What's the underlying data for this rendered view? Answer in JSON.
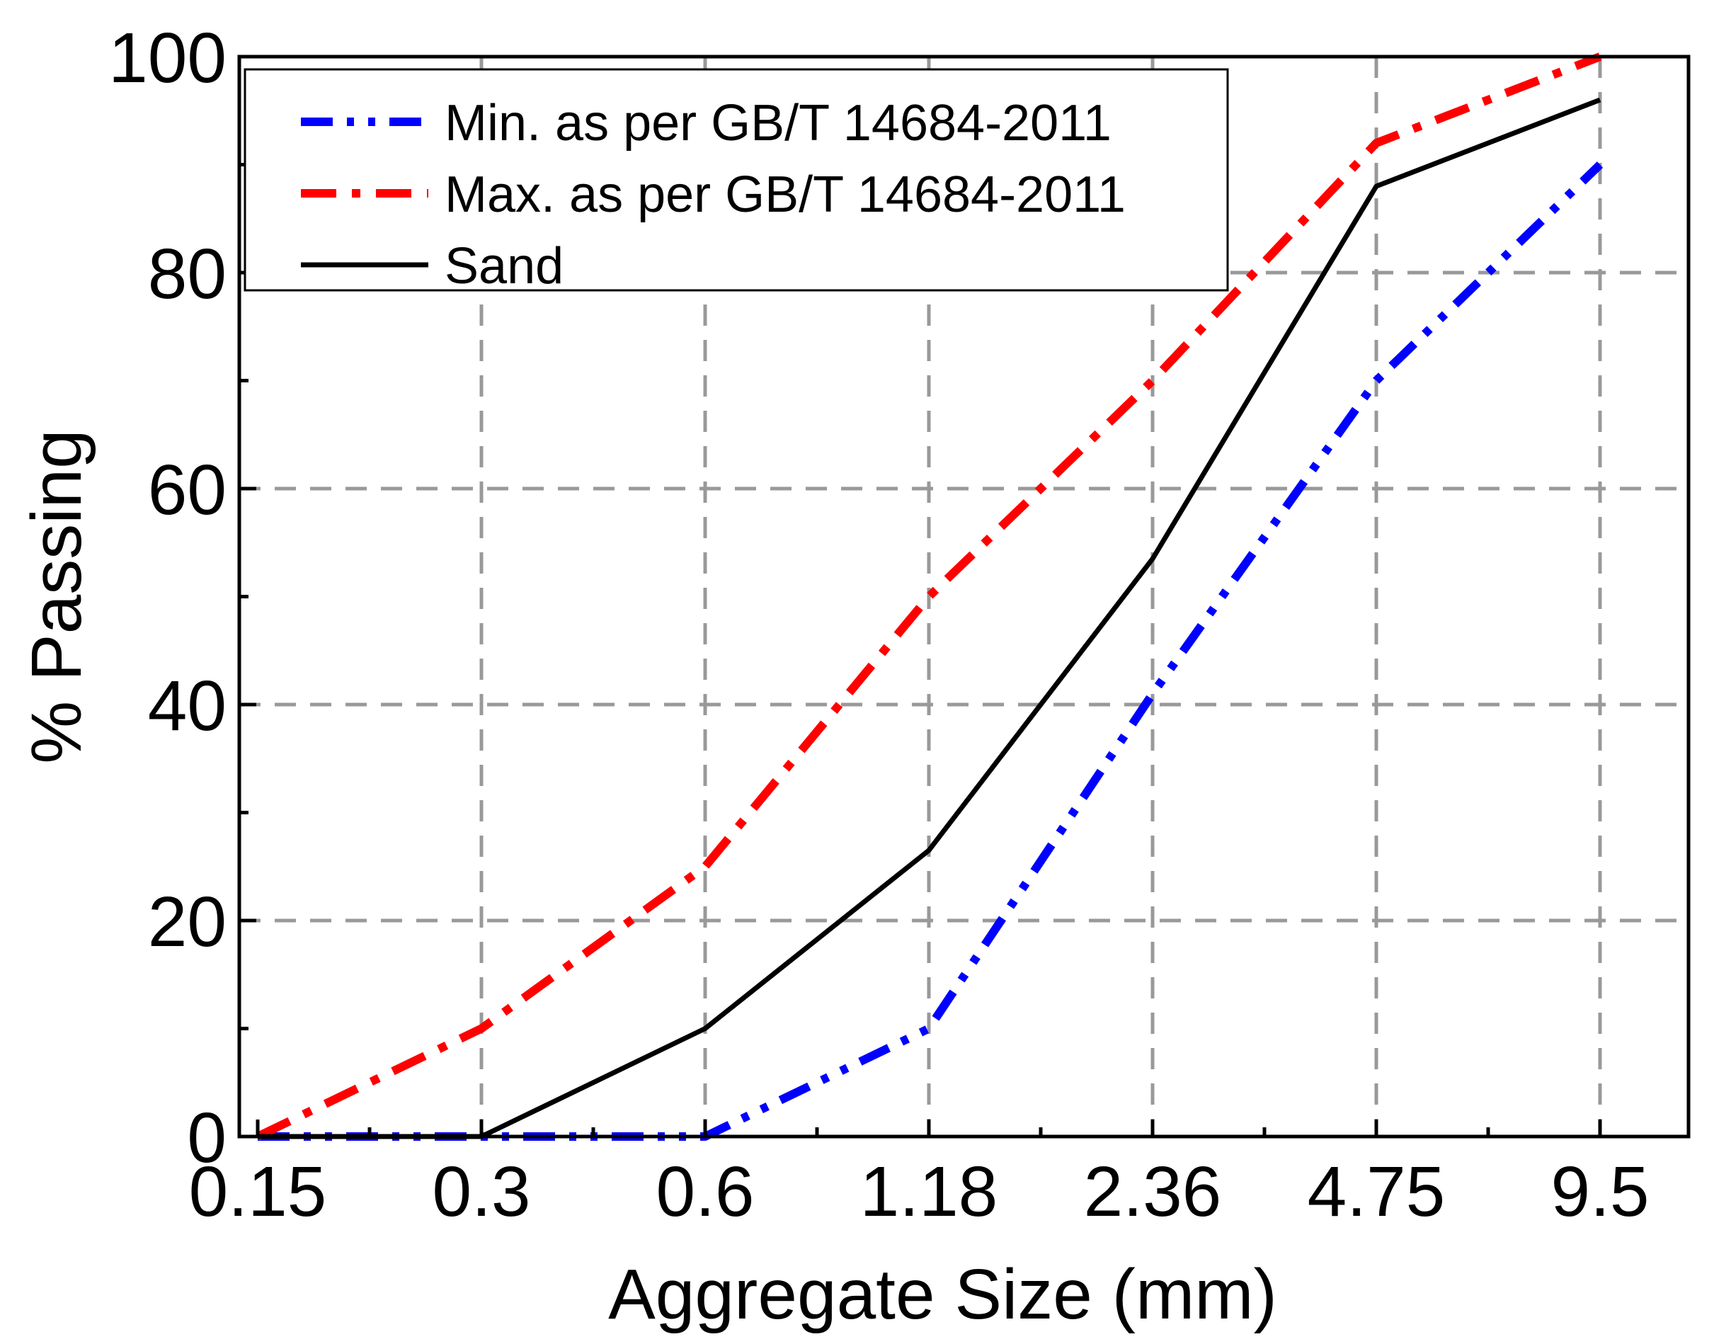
{
  "chart_data": {
    "type": "line",
    "title": "",
    "xlabel": "Aggregate Size (mm)",
    "ylabel": "% Passing",
    "categories": [
      "0.15",
      "0.3",
      "0.6",
      "1.18",
      "2.36",
      "4.75",
      "9.5"
    ],
    "ylim": [
      0,
      100
    ],
    "yticks": [
      "0",
      "20",
      "40",
      "60",
      "80",
      "100"
    ],
    "grid": true,
    "legend_position": "top-left",
    "series": [
      {
        "name": "Min. as per GB/T 14684-2011",
        "color": "#0000ff",
        "style": "dash-dot-dot",
        "values": [
          0,
          0,
          0,
          10,
          41,
          70,
          90
        ]
      },
      {
        "name": "Max. as per GB/T 14684-2011",
        "color": "#ff0000",
        "style": "dash-dot",
        "values": [
          0,
          10,
          25,
          50,
          70,
          92,
          100
        ]
      },
      {
        "name": "Sand",
        "color": "#000000",
        "style": "solid",
        "values": [
          0,
          0,
          10,
          26.5,
          53.5,
          88,
          96
        ]
      }
    ]
  }
}
